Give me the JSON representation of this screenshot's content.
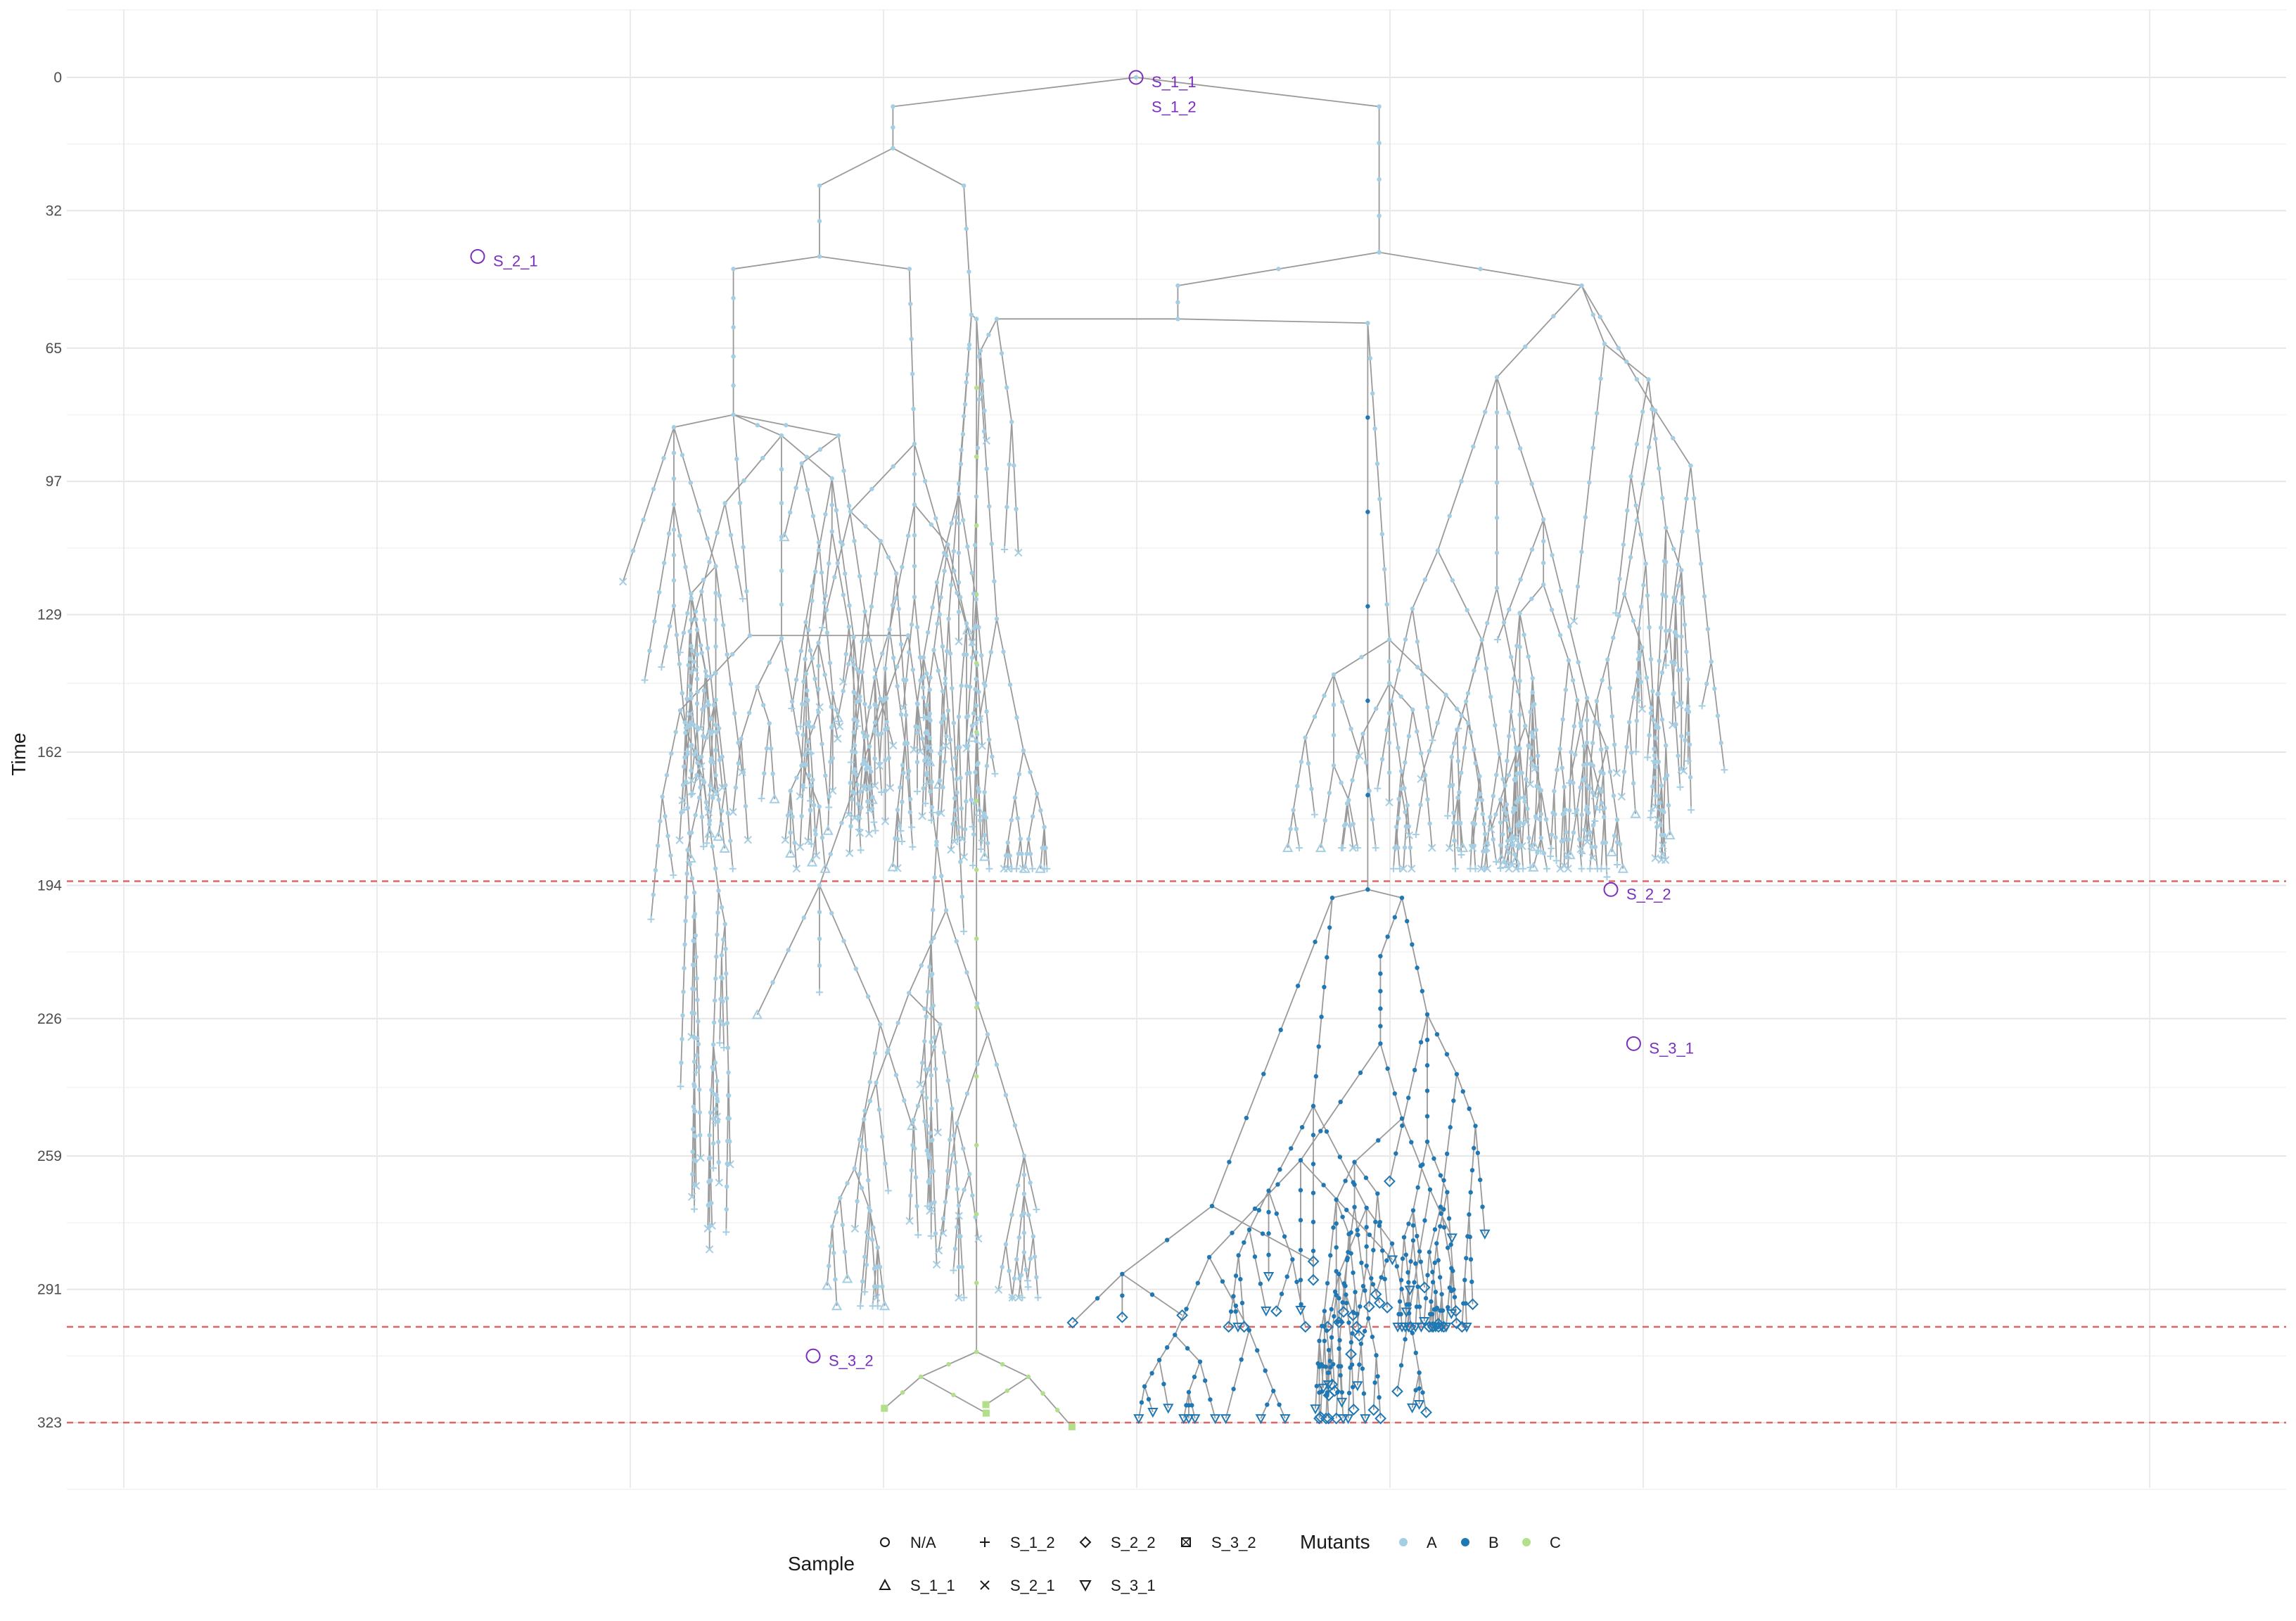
{
  "chart_data": {
    "type": "tree",
    "ylabel": "Time",
    "y_ticks": [
      0,
      32,
      65,
      97,
      129,
      162,
      194,
      226,
      259,
      291,
      323
    ],
    "ylim": [
      0,
      340
    ],
    "y_reversed": true,
    "grid": true,
    "threshold_lines": [
      193,
      300,
      323
    ],
    "threshold_color": "#e06666",
    "colors": {
      "A": "#a6cee3",
      "B": "#1f78b4",
      "C": "#b2df8a",
      "edge": "#9a9a9a",
      "annotation": "#7b2fbe"
    },
    "annotations": [
      {
        "label": "S_1_1",
        "x": 0.0,
        "time": 0
      },
      {
        "label": "S_1_2",
        "x": 0.0,
        "time": 6
      },
      {
        "label": "S_2_1",
        "x": -0.52,
        "time": 43
      },
      {
        "label": "S_2_2",
        "x": 0.375,
        "time": 195
      },
      {
        "label": "S_3_1",
        "x": 0.393,
        "time": 232
      },
      {
        "label": "S_3_2",
        "x": -0.255,
        "time": 307
      }
    ],
    "legend": {
      "sample_title": "Sample",
      "sample_items": [
        {
          "label": "N/A",
          "shape": "circle"
        },
        {
          "label": "S_1_2",
          "shape": "plus"
        },
        {
          "label": "S_2_2",
          "shape": "diamond"
        },
        {
          "label": "S_3_2",
          "shape": "square-x"
        },
        {
          "label": "S_1_1",
          "shape": "triangle-up"
        },
        {
          "label": "S_2_1",
          "shape": "cross"
        },
        {
          "label": "S_3_1",
          "shape": "triangle-down"
        }
      ],
      "mutants_title": "Mutants",
      "mutants_items": [
        {
          "label": "A",
          "color": "#a6cee3"
        },
        {
          "label": "B",
          "color": "#1f78b4"
        },
        {
          "label": "C",
          "color": "#b2df8a"
        }
      ],
      "placement": "bottom"
    }
  }
}
